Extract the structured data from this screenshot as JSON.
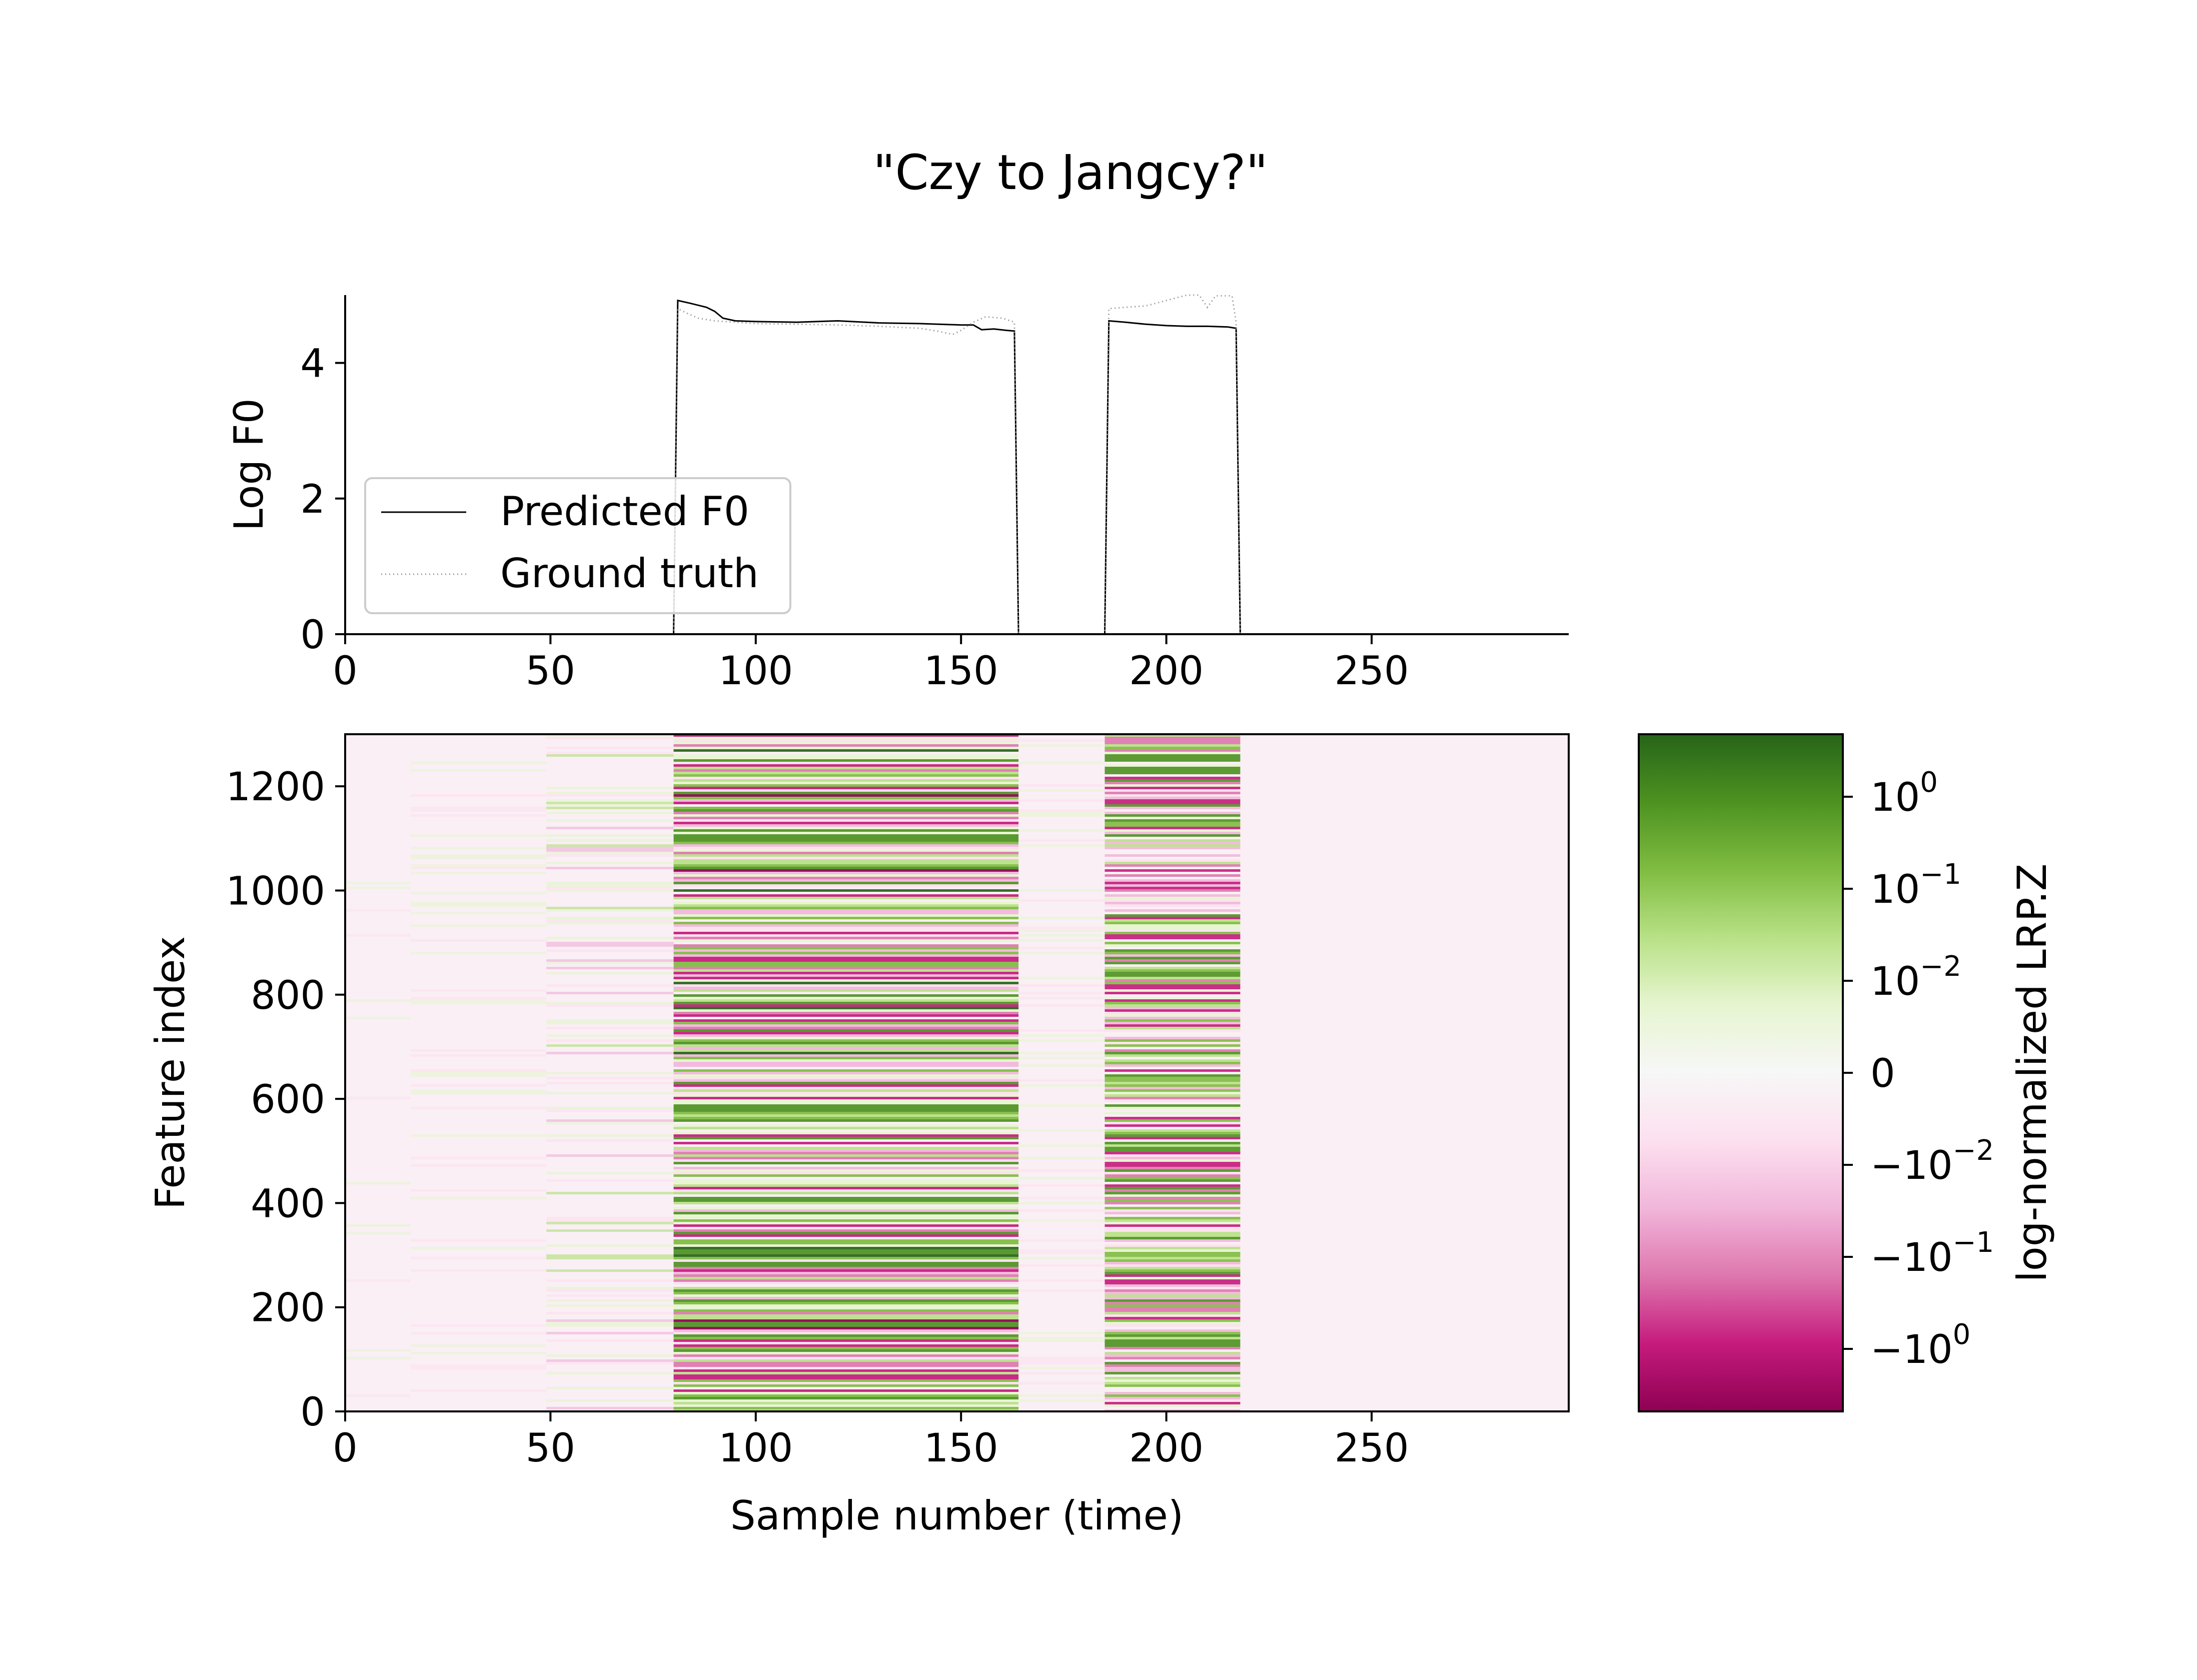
{
  "chart_data": [
    {
      "type": "line",
      "title": "\"Czy to Jangcy?\"",
      "xlabel": "",
      "ylabel": "Log F0",
      "xlim": [
        0,
        298
      ],
      "ylim": [
        0,
        5
      ],
      "xticks": [
        0,
        50,
        100,
        150,
        200,
        250
      ],
      "yticks": [
        0,
        2,
        4
      ],
      "legend": {
        "placement": "lower-left"
      },
      "series": [
        {
          "name": "Predicted F0",
          "color": "#000000",
          "style": "solid",
          "points": [
            [
              0,
              0
            ],
            [
              80,
              0
            ],
            [
              81,
              4.92
            ],
            [
              84,
              4.88
            ],
            [
              88,
              4.82
            ],
            [
              90,
              4.76
            ],
            [
              92,
              4.66
            ],
            [
              95,
              4.62
            ],
            [
              100,
              4.61
            ],
            [
              110,
              4.6
            ],
            [
              120,
              4.62
            ],
            [
              130,
              4.59
            ],
            [
              140,
              4.58
            ],
            [
              150,
              4.56
            ],
            [
              153,
              4.56
            ],
            [
              155,
              4.49
            ],
            [
              158,
              4.5
            ],
            [
              161,
              4.48
            ],
            [
              163,
              4.47
            ],
            [
              164,
              0
            ],
            [
              185,
              0
            ],
            [
              186,
              4.62
            ],
            [
              190,
              4.6
            ],
            [
              195,
              4.57
            ],
            [
              200,
              4.55
            ],
            [
              205,
              4.54
            ],
            [
              210,
              4.54
            ],
            [
              215,
              4.53
            ],
            [
              217,
              4.51
            ],
            [
              218,
              0
            ],
            [
              298,
              0
            ]
          ]
        },
        {
          "name": "Ground truth",
          "color": "#999999",
          "style": "dotted",
          "points": [
            [
              0,
              0
            ],
            [
              80,
              0
            ],
            [
              81,
              4.8
            ],
            [
              83,
              4.74
            ],
            [
              86,
              4.66
            ],
            [
              90,
              4.62
            ],
            [
              100,
              4.58
            ],
            [
              110,
              4.57
            ],
            [
              120,
              4.56
            ],
            [
              130,
              4.54
            ],
            [
              140,
              4.51
            ],
            [
              145,
              4.46
            ],
            [
              148,
              4.42
            ],
            [
              150,
              4.48
            ],
            [
              153,
              4.6
            ],
            [
              156,
              4.68
            ],
            [
              160,
              4.66
            ],
            [
              163,
              4.6
            ],
            [
              164,
              0
            ],
            [
              185,
              0
            ],
            [
              186,
              4.8
            ],
            [
              190,
              4.82
            ],
            [
              195,
              4.84
            ],
            [
              200,
              4.92
            ],
            [
              205,
              5.0
            ],
            [
              208,
              5.0
            ],
            [
              210,
              4.82
            ],
            [
              212,
              4.99
            ],
            [
              216,
              4.99
            ],
            [
              217,
              4.6
            ],
            [
              218,
              0
            ],
            [
              298,
              0
            ]
          ]
        }
      ]
    },
    {
      "type": "heatmap",
      "xlabel": "Sample number (time)",
      "ylabel": "Feature index",
      "xlim": [
        0,
        298
      ],
      "ylim": [
        0,
        1300
      ],
      "xticks": [
        0,
        50,
        100,
        150,
        200,
        250
      ],
      "yticks": [
        0,
        200,
        400,
        600,
        800,
        1000,
        1200
      ],
      "colormap": "PiYG",
      "colorbar": {
        "label": "log-normalized LRP.Z",
        "ticks": [
          "10",
          "10",
          "10",
          "0",
          "−10",
          "−10",
          "−10"
        ],
        "exponents": [
          "0",
          "−1",
          "−2",
          "",
          "−2",
          "−1",
          "0"
        ],
        "colors": [
          "#276419",
          "#4d9221",
          "#7fbc41",
          "#b8e186",
          "#e6f5d0",
          "#f7f7f7",
          "#fde0ef",
          "#f1b6da",
          "#de77ae",
          "#c51b7d",
          "#8e0152"
        ]
      },
      "regions": [
        {
          "x_range": [
            0,
            16
          ],
          "intensity": 0.02
        },
        {
          "x_range": [
            16,
            49
          ],
          "intensity": 0.12
        },
        {
          "x_range": [
            49,
            80
          ],
          "intensity": 0.3
        },
        {
          "x_range": [
            80,
            164
          ],
          "intensity": 0.85
        },
        {
          "x_range": [
            164,
            185
          ],
          "intensity": 0.15
        },
        {
          "x_range": [
            185,
            218
          ],
          "intensity": 0.8
        },
        {
          "x_range": [
            218,
            298
          ],
          "intensity": 0.0
        }
      ]
    }
  ]
}
